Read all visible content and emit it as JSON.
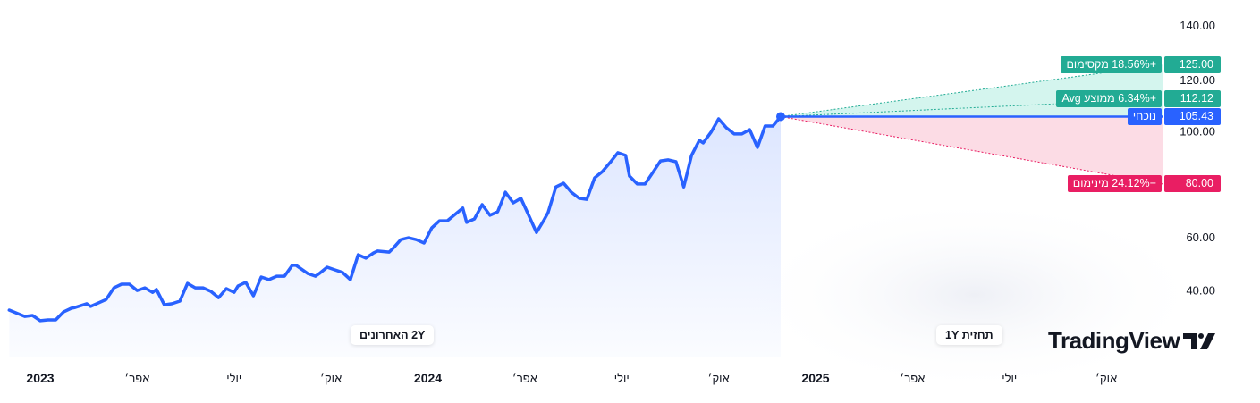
{
  "chart_data": {
    "type": "line",
    "title": "",
    "xlabel": "",
    "ylabel": "",
    "ylim": [
      25,
      145
    ],
    "y_ticks": [
      "140.00",
      "120.00",
      "100.00",
      "60.00",
      "40.00"
    ],
    "y_tick_values": [
      140,
      120,
      100,
      60,
      40
    ],
    "x_ticks": [
      {
        "label": "2023",
        "year": 2023.0,
        "bold": true
      },
      {
        "label": "אפר׳",
        "year": 2023.25
      },
      {
        "label": "יולי",
        "year": 2023.5
      },
      {
        "label": "אוק׳",
        "year": 2023.75
      },
      {
        "label": "2024",
        "year": 2024.0,
        "bold": true
      },
      {
        "label": "אפר׳",
        "year": 2024.25
      },
      {
        "label": "יולי",
        "year": 2024.5
      },
      {
        "label": "אוק׳",
        "year": 2024.75
      },
      {
        "label": "2025",
        "year": 2025.0,
        "bold": true
      },
      {
        "label": "אפר׳",
        "year": 2025.25
      },
      {
        "label": "יולי",
        "year": 2025.5
      },
      {
        "label": "אוק׳",
        "year": 2025.75
      }
    ],
    "grid": false,
    "series": [
      {
        "color": "#2962ff",
        "points": [
          [
            2022.92,
            32.4
          ],
          [
            2022.96,
            30.0
          ],
          [
            2022.98,
            30.4
          ],
          [
            2023.0,
            28.4
          ],
          [
            2023.02,
            28.7
          ],
          [
            2023.04,
            28.7
          ],
          [
            2023.06,
            31.7
          ],
          [
            2023.08,
            33.1
          ],
          [
            2023.09,
            33.4
          ],
          [
            2023.12,
            34.8
          ],
          [
            2023.13,
            33.8
          ],
          [
            2023.17,
            36.4
          ],
          [
            2023.19,
            40.8
          ],
          [
            2023.21,
            42.2
          ],
          [
            2023.23,
            42.2
          ],
          [
            2023.25,
            39.8
          ],
          [
            2023.27,
            40.8
          ],
          [
            2023.29,
            39.1
          ],
          [
            2023.3,
            40.2
          ],
          [
            2023.32,
            34.4
          ],
          [
            2023.34,
            34.8
          ],
          [
            2023.36,
            35.8
          ],
          [
            2023.38,
            42.5
          ],
          [
            2023.4,
            40.8
          ],
          [
            2023.42,
            40.8
          ],
          [
            2023.44,
            39.5
          ],
          [
            2023.46,
            37.1
          ],
          [
            2023.48,
            40.5
          ],
          [
            2023.5,
            39.1
          ],
          [
            2023.51,
            41.5
          ],
          [
            2023.53,
            42.9
          ],
          [
            2023.55,
            37.8
          ],
          [
            2023.57,
            44.9
          ],
          [
            2023.59,
            43.9
          ],
          [
            2023.61,
            45.2
          ],
          [
            2023.63,
            45.2
          ],
          [
            2023.65,
            49.3
          ],
          [
            2023.66,
            49.3
          ],
          [
            2023.69,
            46.2
          ],
          [
            2023.71,
            45.2
          ],
          [
            2023.72,
            46.2
          ],
          [
            2023.74,
            48.6
          ],
          [
            2023.76,
            47.6
          ],
          [
            2023.78,
            46.6
          ],
          [
            2023.8,
            43.9
          ],
          [
            2023.82,
            53.3
          ],
          [
            2023.84,
            52.0
          ],
          [
            2023.86,
            54.0
          ],
          [
            2023.87,
            54.7
          ],
          [
            2023.9,
            54.3
          ],
          [
            2023.91,
            55.7
          ],
          [
            2023.93,
            59.0
          ],
          [
            2023.95,
            59.7
          ],
          [
            2023.97,
            59.0
          ],
          [
            2023.99,
            57.7
          ],
          [
            2024.01,
            63.4
          ],
          [
            2024.03,
            66.1
          ],
          [
            2024.05,
            66.1
          ],
          [
            2024.07,
            68.5
          ],
          [
            2024.09,
            70.9
          ],
          [
            2024.1,
            65.5
          ],
          [
            2024.12,
            66.8
          ],
          [
            2024.14,
            72.2
          ],
          [
            2024.16,
            68.2
          ],
          [
            2024.18,
            69.5
          ],
          [
            2024.2,
            76.9
          ],
          [
            2024.22,
            72.9
          ],
          [
            2024.24,
            74.6
          ],
          [
            2024.26,
            68.2
          ],
          [
            2024.28,
            61.7
          ],
          [
            2024.3,
            66.5
          ],
          [
            2024.31,
            69.2
          ],
          [
            2024.33,
            78.9
          ],
          [
            2024.35,
            80.3
          ],
          [
            2024.37,
            76.9
          ],
          [
            2024.39,
            74.6
          ],
          [
            2024.41,
            74.2
          ],
          [
            2024.43,
            82.3
          ],
          [
            2024.45,
            84.7
          ],
          [
            2024.47,
            88.1
          ],
          [
            2024.49,
            91.8
          ],
          [
            2024.51,
            90.8
          ],
          [
            2024.52,
            83.0
          ],
          [
            2024.54,
            80.0
          ],
          [
            2024.56,
            80.0
          ],
          [
            2024.58,
            84.3
          ],
          [
            2024.6,
            88.7
          ],
          [
            2024.62,
            89.1
          ],
          [
            2024.64,
            88.4
          ],
          [
            2024.66,
            78.9
          ],
          [
            2024.68,
            90.8
          ],
          [
            2024.7,
            96.5
          ],
          [
            2024.71,
            95.5
          ],
          [
            2024.73,
            99.5
          ],
          [
            2024.75,
            104.6
          ],
          [
            2024.77,
            101.2
          ],
          [
            2024.79,
            98.9
          ],
          [
            2024.81,
            98.9
          ],
          [
            2024.83,
            100.5
          ],
          [
            2024.85,
            93.8
          ],
          [
            2024.87,
            101.9
          ],
          [
            2024.89,
            101.9
          ],
          [
            2024.91,
            105.43
          ]
        ]
      }
    ],
    "forecast": {
      "current": {
        "value": 105.43,
        "value_label": "105.43",
        "label": "נוכחי",
        "color": "#2962ff"
      },
      "max": {
        "value": 125.0,
        "value_label": "125.00",
        "label": "+18.56% מקסימום",
        "color": "#22ab94"
      },
      "avg": {
        "value": 112.12,
        "value_label": "112.12",
        "label": "+6.34% ממוצע Avg",
        "color": "#22ab94"
      },
      "min": {
        "value": 80.0,
        "value_label": "80.00",
        "label": "−24.12% מינימום",
        "color": "#e91e63"
      },
      "up_fill": "#d4f5ee",
      "down_fill": "#fcdce5"
    },
    "annotations": {
      "history_label": "2Y האחרונים",
      "forecast_label": "תחזית 1Y"
    }
  },
  "branding": {
    "logo_text": "TradingView"
  }
}
